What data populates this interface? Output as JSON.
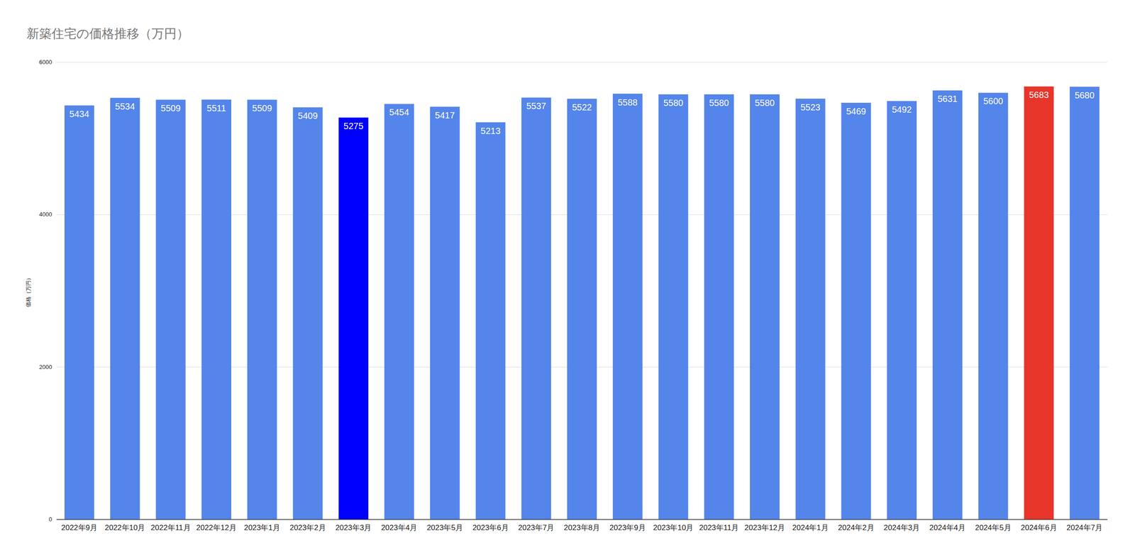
{
  "chart_data": {
    "type": "bar",
    "title": "新築住宅の価格推移（万円）",
    "y_label": "価格（万円）",
    "categories": [
      "2022年9月",
      "2022年10月",
      "2022年11月",
      "2022年12月",
      "2023年1月",
      "2023年2月",
      "2023年3月",
      "2023年4月",
      "2023年5月",
      "2023年6月",
      "2023年7月",
      "2023年8月",
      "2023年9月",
      "2023年10月",
      "2023年11月",
      "2023年12月",
      "2024年1月",
      "2024年2月",
      "2024年3月",
      "2024年4月",
      "2024年5月",
      "2024年6月",
      "2024年7月"
    ],
    "values": [
      5434,
      5534,
      5509,
      5511,
      5509,
      5409,
      5275,
      5454,
      5417,
      5213,
      5537,
      5522,
      5588,
      5580,
      5580,
      5580,
      5523,
      5469,
      5492,
      5631,
      5600,
      5683,
      5680
    ],
    "colors": [
      "#5485ea",
      "#5485ea",
      "#5485ea",
      "#5485ea",
      "#5485ea",
      "#5485ea",
      "#0000ff",
      "#5485ea",
      "#5485ea",
      "#5485ea",
      "#5485ea",
      "#5485ea",
      "#5485ea",
      "#5485ea",
      "#5485ea",
      "#5485ea",
      "#5485ea",
      "#5485ea",
      "#5485ea",
      "#5485ea",
      "#5485ea",
      "#e8352a",
      "#5485ea"
    ],
    "ylim": [
      0,
      6000
    ],
    "yticks": [
      0,
      2000,
      4000,
      6000
    ],
    "grid": true,
    "data_labels": true
  }
}
